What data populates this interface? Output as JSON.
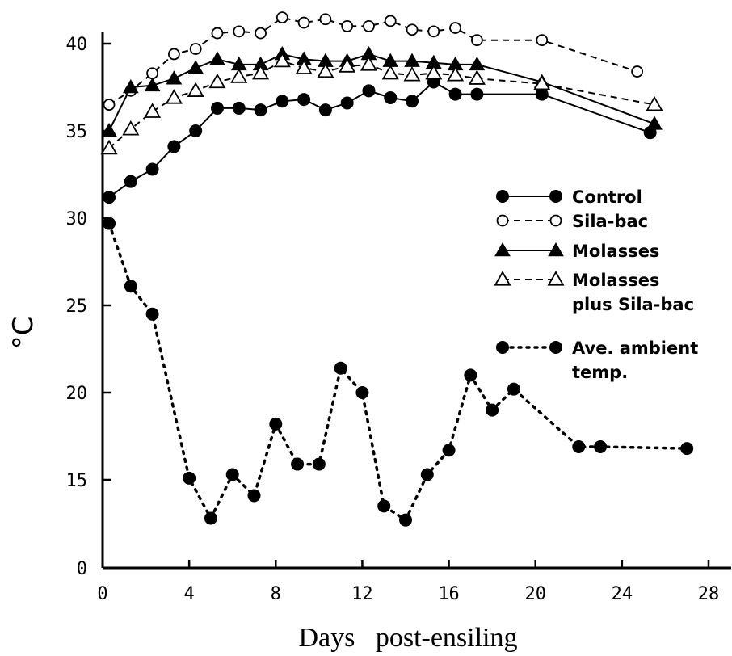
{
  "chart_data": {
    "type": "line",
    "title": "",
    "xlabel": "Days   post-ensiling",
    "ylabel": "°C",
    "x_ticks": [
      "0",
      "4",
      "8",
      "12",
      "16",
      "20",
      "24",
      "28"
    ],
    "y_ticks": [
      "0",
      "15",
      "20",
      "25",
      "30",
      "35",
      "40"
    ],
    "xlim": [
      0,
      28
    ],
    "y_axis_break": "0 at bottom, then 15 to 40 with uniform spacing",
    "grid": false,
    "legend_position": "right",
    "series": [
      {
        "name": "Control",
        "marker": "filled-circle",
        "line": "solid",
        "x": [
          0.3,
          1.3,
          2.3,
          3.3,
          4.3,
          5.3,
          6.3,
          7.3,
          8.3,
          9.3,
          10.3,
          11.3,
          12.3,
          13.3,
          14.3,
          15.3,
          16.3,
          17.3,
          20.3,
          25.3
        ],
        "y": [
          31.2,
          32.1,
          32.8,
          34.1,
          35.0,
          36.3,
          36.3,
          36.2,
          36.7,
          36.8,
          36.2,
          36.6,
          37.3,
          36.9,
          36.7,
          37.8,
          37.1,
          37.1,
          37.1,
          34.9
        ]
      },
      {
        "name": "Sila-bac",
        "marker": "open-circle",
        "line": "dashed",
        "x": [
          0.3,
          1.3,
          2.3,
          3.3,
          4.3,
          5.3,
          6.3,
          7.3,
          8.3,
          9.3,
          10.3,
          11.3,
          12.3,
          13.3,
          14.3,
          15.3,
          16.3,
          17.3,
          20.3,
          24.7
        ],
        "y": [
          36.5,
          37.3,
          38.3,
          39.4,
          39.7,
          40.6,
          40.7,
          40.6,
          41.5,
          41.2,
          41.4,
          41.0,
          41.0,
          41.3,
          40.8,
          40.7,
          40.9,
          40.2,
          40.2,
          38.4
        ]
      },
      {
        "name": "Molasses",
        "marker": "filled-triangle",
        "line": "solid",
        "x": [
          0.3,
          1.3,
          2.3,
          3.3,
          4.3,
          5.3,
          6.3,
          7.3,
          8.3,
          9.3,
          10.3,
          11.3,
          12.3,
          13.3,
          14.3,
          15.3,
          16.3,
          17.3,
          20.3,
          25.5
        ],
        "y": [
          35.0,
          37.5,
          37.6,
          38.0,
          38.6,
          39.1,
          38.8,
          38.8,
          39.4,
          39.1,
          39.0,
          39.0,
          39.4,
          39.0,
          39.0,
          38.9,
          38.8,
          38.8,
          37.8,
          35.4
        ]
      },
      {
        "name": "Molasses plus Sila-bac",
        "legend_lines": [
          "Molasses",
          "plus Sila-bac"
        ],
        "marker": "open-triangle",
        "line": "dashed",
        "x": [
          0.3,
          1.3,
          2.3,
          3.3,
          4.3,
          5.3,
          6.3,
          7.3,
          8.3,
          9.3,
          10.3,
          11.3,
          12.3,
          13.3,
          14.3,
          15.3,
          16.3,
          17.3,
          20.3,
          25.5
        ],
        "y": [
          34.0,
          35.1,
          36.1,
          36.9,
          37.3,
          37.8,
          38.1,
          38.3,
          39.0,
          38.6,
          38.4,
          38.7,
          38.8,
          38.3,
          38.2,
          38.3,
          38.2,
          38.0,
          37.7,
          36.5
        ]
      },
      {
        "name": "Ave. ambient temp.",
        "legend_lines": [
          "Ave. ambient",
          "temp."
        ],
        "marker": "filled-circle",
        "line": "dotted",
        "x": [
          0.3,
          1.3,
          2.3,
          4.0,
          5.0,
          6.0,
          7.0,
          8.0,
          9.0,
          10.0,
          11.0,
          12.0,
          13.0,
          14.0,
          15.0,
          16.0,
          17.0,
          18.0,
          19.0,
          22.0,
          23.0,
          27.0
        ],
        "y": [
          29.7,
          26.1,
          24.5,
          15.1,
          12.8,
          15.3,
          14.1,
          18.2,
          15.9,
          15.9,
          21.4,
          20.0,
          13.5,
          12.7,
          15.3,
          16.7,
          21.0,
          19.0,
          20.2,
          16.9,
          16.9,
          16.8
        ]
      }
    ]
  }
}
